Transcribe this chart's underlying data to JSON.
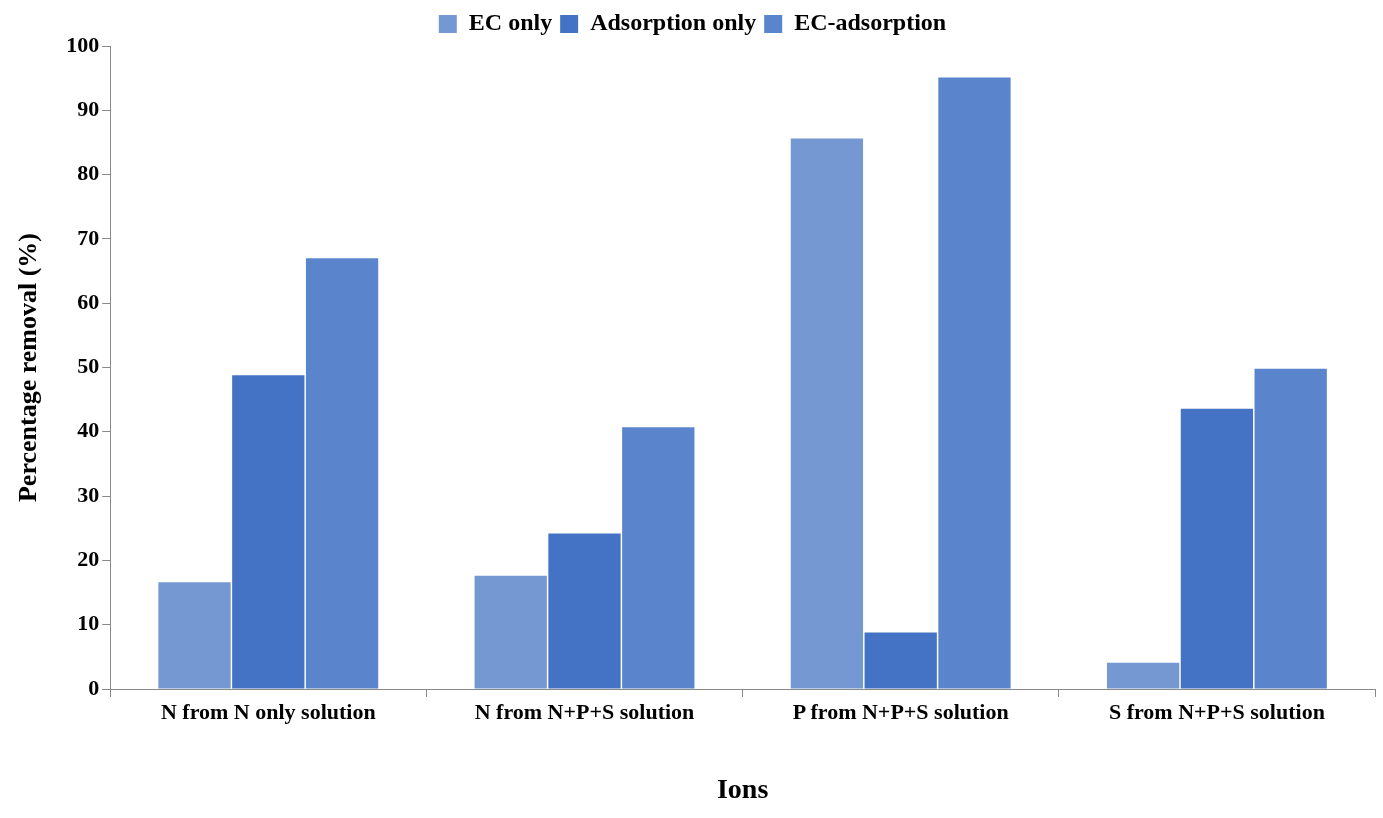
{
  "chart_data": {
    "type": "bar",
    "xlabel": "Ions",
    "ylabel": "Percentage removal (%)",
    "categories": [
      "N from N only solution",
      "N from N+P+S solution",
      "P from N+P+S solution",
      "S from N+P+S solution"
    ],
    "series": [
      {
        "name": "EC only",
        "color": "#7597d2",
        "values": [
          16.6,
          17.6,
          85.6,
          4.1
        ]
      },
      {
        "name": "Adsorption only",
        "color": "#4472c4",
        "values": [
          48.8,
          24.2,
          8.8,
          43.6
        ]
      },
      {
        "name": "EC-adsorption",
        "color": "#5a85cc",
        "values": [
          67.0,
          40.7,
          95.1,
          49.8
        ]
      }
    ],
    "ylim": [
      0,
      100
    ],
    "yticks": [
      0,
      10,
      20,
      30,
      40,
      50,
      60,
      70,
      80,
      90,
      100
    ],
    "grid": false,
    "legend": "top"
  }
}
